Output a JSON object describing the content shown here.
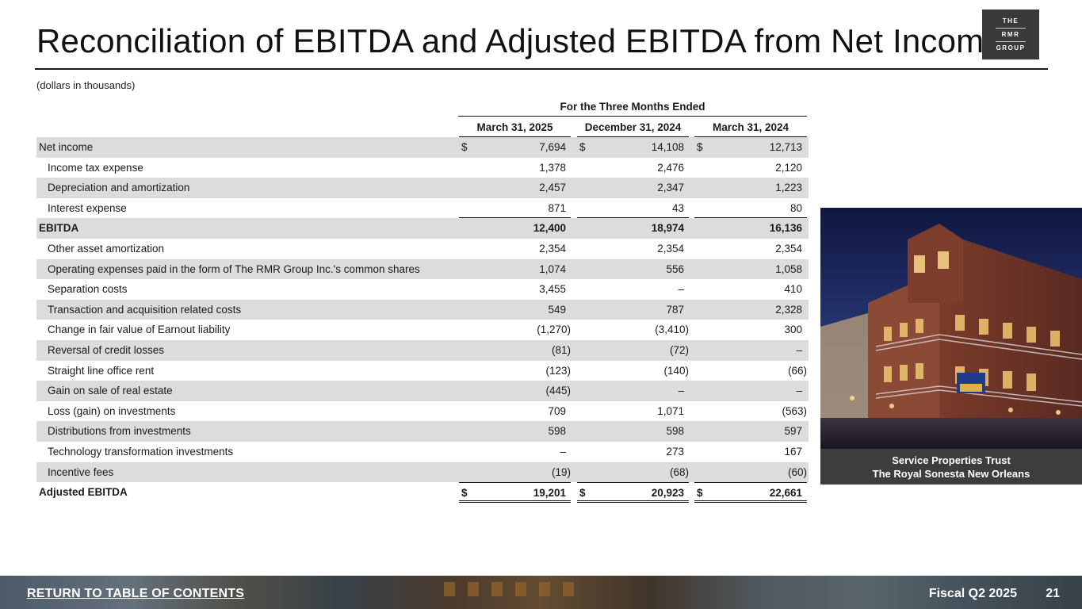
{
  "title": "Reconciliation of EBITDA and Adjusted EBITDA from Net Income",
  "logo": {
    "line1": "THE",
    "line2": "RMR",
    "line3": "GROUP"
  },
  "units_note": "(dollars in thousands)",
  "table": {
    "period_header": "For the Three Months Ended",
    "columns": [
      "March 31, 2025",
      "December 31, 2024",
      "March 31, 2024"
    ],
    "rows": [
      {
        "label": "Net income",
        "values": [
          "7,694",
          "14,108",
          "12,713"
        ],
        "dollar": true,
        "shade": true,
        "style": "first"
      },
      {
        "label": "Income tax expense",
        "values": [
          "1,378",
          "2,476",
          "2,120"
        ],
        "shade": false
      },
      {
        "label": "Depreciation and amortization",
        "values": [
          "2,457",
          "2,347",
          "1,223"
        ],
        "shade": true
      },
      {
        "label": "Interest expense",
        "values": [
          "871",
          "43",
          "80"
        ],
        "shade": false,
        "underline": true
      },
      {
        "label": "EBITDA",
        "values": [
          "12,400",
          "18,974",
          "16,136"
        ],
        "shade": true,
        "style": "total"
      },
      {
        "label": "Other asset amortization",
        "values": [
          "2,354",
          "2,354",
          "2,354"
        ],
        "shade": false
      },
      {
        "label": "Operating expenses paid in the form of The RMR Group Inc.'s common shares",
        "values": [
          "1,074",
          "556",
          "1,058"
        ],
        "shade": true
      },
      {
        "label": "Separation costs",
        "values": [
          "3,455",
          "–",
          "410"
        ],
        "shade": false
      },
      {
        "label": "Transaction and acquisition related costs",
        "values": [
          "549",
          "787",
          "2,328"
        ],
        "shade": true
      },
      {
        "label": "Change in fair value of Earnout liability",
        "values": [
          "(1,270)",
          "(3,410)",
          "300"
        ],
        "shade": false
      },
      {
        "label": "Reversal of credit losses",
        "values": [
          "(81)",
          "(72)",
          "–"
        ],
        "shade": true
      },
      {
        "label": "Straight line office rent",
        "values": [
          "(123)",
          "(140)",
          "(66)"
        ],
        "shade": false
      },
      {
        "label": "Gain on sale of real estate",
        "values": [
          "(445)",
          "–",
          "–"
        ],
        "shade": true
      },
      {
        "label": "Loss (gain) on investments",
        "values": [
          "709",
          "1,071",
          "(563)"
        ],
        "shade": false
      },
      {
        "label": "Distributions from investments",
        "values": [
          "598",
          "598",
          "597"
        ],
        "shade": true
      },
      {
        "label": "Technology transformation investments",
        "values": [
          "–",
          "273",
          "167"
        ],
        "shade": false
      },
      {
        "label": "Incentive fees",
        "values": [
          "(19)",
          "(68)",
          "(60)"
        ],
        "shade": true
      },
      {
        "label": "Adjusted EBITDA",
        "values": [
          "19,201",
          "20,923",
          "22,661"
        ],
        "dollar": true,
        "shade": false,
        "style": "total",
        "grand": true
      }
    ]
  },
  "photo_caption": {
    "line1": "Service Properties Trust",
    "line2": "The Royal Sonesta New Orleans"
  },
  "footer": {
    "toc_link": "RETURN TO TABLE OF CONTENTS",
    "period": "Fiscal Q2 2025",
    "page_number": "21"
  },
  "currency_symbol": "$"
}
